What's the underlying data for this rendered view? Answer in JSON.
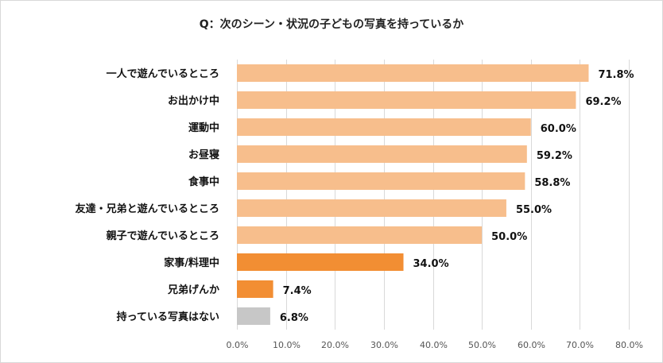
{
  "chart_data": {
    "type": "bar",
    "orientation": "horizontal",
    "title": "Q：次のシーン・状況の子どもの写真を持っているか",
    "categories": [
      "一人で遊んでいるところ",
      "お出かけ中",
      "運動中",
      "お昼寝",
      "食事中",
      "友達・兄弟と遊んでいるところ",
      "親子で遊んでいるところ",
      "家事/料理中",
      "兄弟げんか",
      "持っている写真はない"
    ],
    "values": [
      71.8,
      69.2,
      60.0,
      59.2,
      58.8,
      55.0,
      50.0,
      34.0,
      7.4,
      6.8
    ],
    "value_labels": [
      "71.8%",
      "69.2%",
      "60.0%",
      "59.2%",
      "58.8%",
      "55.0%",
      "50.0%",
      "34.0%",
      "7.4%",
      "6.8%"
    ],
    "bar_colors": [
      "#f7be8c",
      "#f7be8c",
      "#f7be8c",
      "#f7be8c",
      "#f7be8c",
      "#f7be8c",
      "#f7be8c",
      "#f28e33",
      "#f28e33",
      "#c7c7c7"
    ],
    "xlim": [
      0,
      80
    ],
    "x_ticks": [
      0,
      10,
      20,
      30,
      40,
      50,
      60,
      70,
      80
    ],
    "x_tick_labels": [
      "0.0%",
      "10.0%",
      "20.0%",
      "30.0%",
      "40.0%",
      "50.0%",
      "60.0%",
      "70.0%",
      "80.0%"
    ],
    "grid": true,
    "legend": "none",
    "xlabel": "",
    "ylabel": ""
  }
}
